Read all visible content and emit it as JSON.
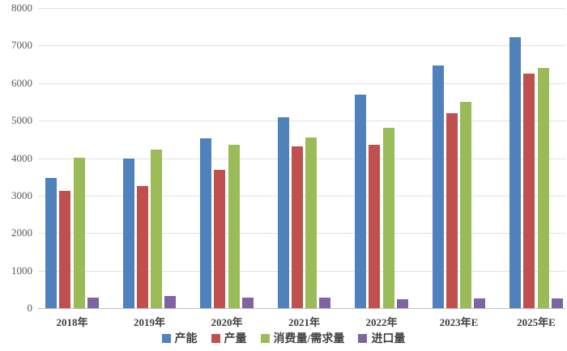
{
  "chart_data": {
    "type": "bar",
    "title": "",
    "xlabel": "",
    "ylabel": "",
    "categories": [
      "2018年",
      "2019年",
      "2020年",
      "2021年",
      "2022年",
      "2023年E",
      "2025年E"
    ],
    "series": [
      {
        "name": "产能",
        "color": "#4F81BD",
        "values": [
          3480,
          4000,
          4530,
          5080,
          5690,
          6460,
          7220
        ]
      },
      {
        "name": "产量",
        "color": "#C0504D",
        "values": [
          3130,
          3250,
          3680,
          4310,
          4360,
          5200,
          6250
        ]
      },
      {
        "name": "消费量/需求量",
        "color": "#9BBB59",
        "values": [
          4020,
          4230,
          4350,
          4550,
          4800,
          5500,
          6400
        ]
      },
      {
        "name": "进口量",
        "color": "#8064A2",
        "values": [
          290,
          320,
          280,
          270,
          240,
          250,
          260
        ]
      }
    ],
    "ylim": [
      0,
      8000
    ],
    "yticks": [
      0,
      1000,
      2000,
      3000,
      4000,
      5000,
      6000,
      7000,
      8000
    ],
    "grid": "horizontal",
    "legend_position": "bottom"
  },
  "style": {
    "gridline_color": "#e2e2e2",
    "axis_line_color": "#bfbfbf",
    "tick_label_color": "#595959",
    "category_label_color": "#404040",
    "background_color": "#ffffff"
  }
}
